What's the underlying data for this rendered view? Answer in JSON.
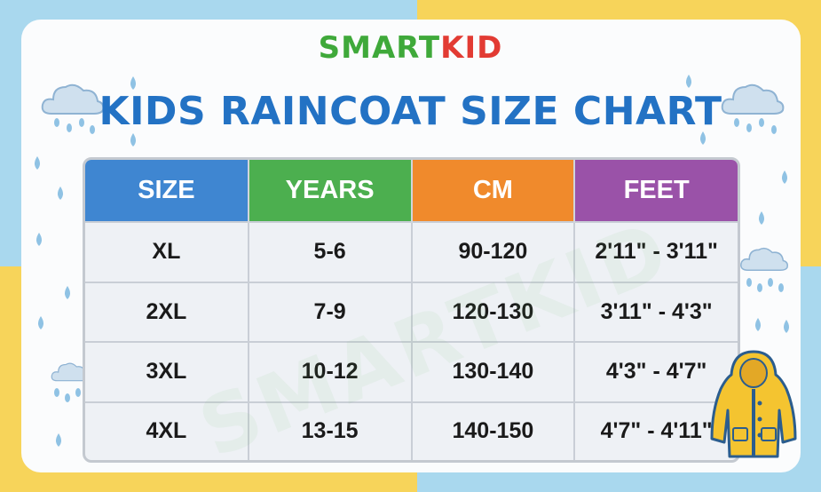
{
  "brand": {
    "part1": "SMART",
    "part2": "KID"
  },
  "title": "KIDS RAINCOAT SIZE CHART",
  "watermark": "SMARTKID",
  "table": {
    "headers": [
      {
        "label": "SIZE",
        "color": "#3f86d1"
      },
      {
        "label": "YEARS",
        "color": "#4caf4f"
      },
      {
        "label": "CM",
        "color": "#f08a2c"
      },
      {
        "label": "FEET",
        "color": "#9a52a8"
      }
    ],
    "rows": [
      [
        "XL",
        "5-6",
        "90-120",
        "2'11\" - 3'11\""
      ],
      [
        "2XL",
        "7-9",
        "120-130",
        "3'11\" - 4'3\""
      ],
      [
        "3XL",
        "10-12",
        "130-140",
        "4'3\" - 4'7\""
      ],
      [
        "4XL",
        "13-15",
        "140-150",
        "4'7\" - 4'11\""
      ]
    ]
  },
  "colors": {
    "title": "#2372c4",
    "brand_green": "#3fa93a",
    "brand_red": "#e23b33",
    "raincoat": "#f4c430"
  },
  "icons": [
    "cloud-icon",
    "raindrop-icon",
    "raincoat-icon"
  ]
}
